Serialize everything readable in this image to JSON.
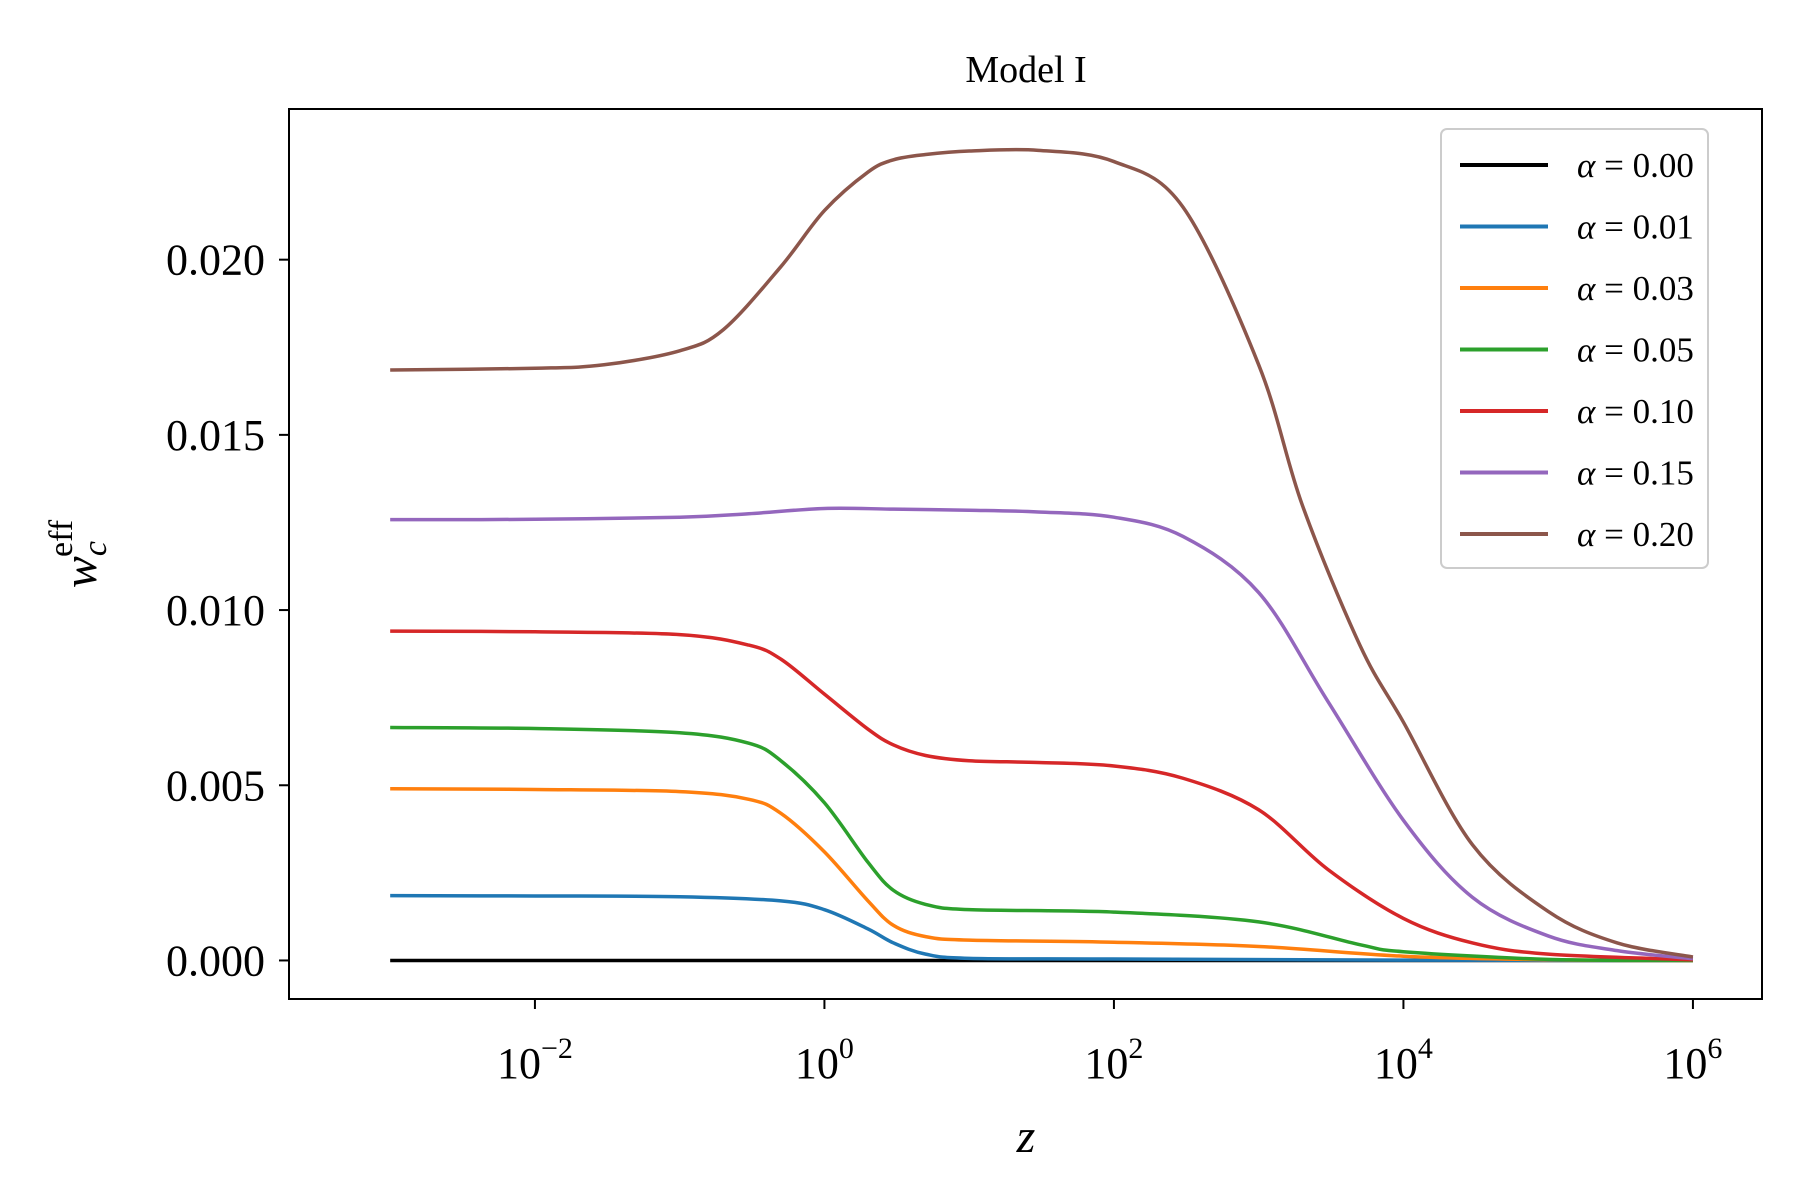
{
  "chart_data": {
    "type": "line",
    "title": "Model I",
    "xlabel": "z",
    "ylabel": "w",
    "ylabel_sub": "c",
    "ylabel_sup": "eff",
    "xscale": "log",
    "xlim": [
      0.0002,
      3000000
    ],
    "ylim": [
      -0.0011,
      0.0243
    ],
    "xticks": [
      {
        "value": 0.01,
        "base": "10",
        "exp": "−2"
      },
      {
        "value": 1,
        "base": "10",
        "exp": "0"
      },
      {
        "value": 100,
        "base": "10",
        "exp": "2"
      },
      {
        "value": 10000,
        "base": "10",
        "exp": "4"
      },
      {
        "value": 1000000,
        "base": "10",
        "exp": "6"
      }
    ],
    "yticks": [
      {
        "value": 0.0,
        "label": "0.000"
      },
      {
        "value": 0.005,
        "label": "0.005"
      },
      {
        "value": 0.01,
        "label": "0.010"
      },
      {
        "value": 0.015,
        "label": "0.015"
      },
      {
        "value": 0.02,
        "label": "0.020"
      }
    ],
    "legend_position": "top-right",
    "legend_symbol": "α",
    "series": [
      {
        "name": "α = 0.00",
        "value_label": "= 0.00",
        "color": "#000000",
        "x": [
          0.001,
          1000000
        ],
        "y": [
          0,
          0
        ]
      },
      {
        "name": "α = 0.01",
        "value_label": "= 0.01",
        "color": "#1f77b4",
        "x": [
          0.001,
          0.01,
          0.1,
          0.5,
          1,
          2,
          3,
          5,
          10,
          100,
          10000,
          1000000
        ],
        "y": [
          0.00185,
          0.00184,
          0.00182,
          0.0017,
          0.00145,
          0.0009,
          0.0005,
          0.00018,
          6e-05,
          4e-05,
          1e-05,
          0.0
        ]
      },
      {
        "name": "α = 0.03",
        "value_label": "= 0.03",
        "color": "#ff7f0e",
        "x": [
          0.001,
          0.01,
          0.1,
          0.3,
          0.5,
          1,
          2,
          3,
          5,
          10,
          100,
          1000,
          10000,
          100000,
          1000000
        ],
        "y": [
          0.0049,
          0.00488,
          0.00482,
          0.0046,
          0.0042,
          0.0031,
          0.0017,
          0.001,
          0.00068,
          0.00058,
          0.00052,
          0.0004,
          0.00012,
          2e-05,
          0.0
        ]
      },
      {
        "name": "α = 0.05",
        "value_label": "= 0.05",
        "color": "#2ca02c",
        "x": [
          0.001,
          0.01,
          0.1,
          0.3,
          0.5,
          1,
          2,
          3,
          5,
          10,
          100,
          1000,
          5000,
          10000,
          100000,
          1000000
        ],
        "y": [
          0.00665,
          0.00662,
          0.0065,
          0.0062,
          0.0057,
          0.0045,
          0.0028,
          0.002,
          0.0016,
          0.00145,
          0.00138,
          0.0011,
          0.00045,
          0.00025,
          3e-05,
          0.0
        ]
      },
      {
        "name": "α = 0.10",
        "value_label": "= 0.10",
        "color": "#d62728",
        "x": [
          0.001,
          0.01,
          0.1,
          0.3,
          0.5,
          1,
          2,
          3,
          5,
          10,
          30,
          100,
          300,
          1000,
          3000,
          10000,
          30000,
          100000,
          1000000
        ],
        "y": [
          0.0094,
          0.00938,
          0.0093,
          0.009,
          0.0086,
          0.0076,
          0.0066,
          0.00615,
          0.00585,
          0.0057,
          0.00565,
          0.00555,
          0.0052,
          0.0043,
          0.0026,
          0.0012,
          0.0005,
          0.00018,
          2e-05
        ]
      },
      {
        "name": "α = 0.15",
        "value_label": "= 0.15",
        "color": "#9467bd",
        "x": [
          0.001,
          0.01,
          0.1,
          0.3,
          1,
          3,
          10,
          30,
          100,
          300,
          1000,
          3000,
          10000,
          30000,
          100000,
          300000,
          1000000
        ],
        "y": [
          0.01258,
          0.01259,
          0.01265,
          0.01275,
          0.0129,
          0.01288,
          0.01285,
          0.0128,
          0.01265,
          0.0121,
          0.0105,
          0.0074,
          0.004,
          0.0018,
          0.0007,
          0.00028,
          5e-05
        ]
      },
      {
        "name": "α = 0.20",
        "value_label": "= 0.20",
        "color": "#8c564b",
        "x": [
          0.001,
          0.01,
          0.03,
          0.1,
          0.2,
          0.5,
          1,
          2,
          3,
          5,
          10,
          30,
          100,
          300,
          1000,
          2000,
          5000,
          10000,
          30000,
          100000,
          300000,
          1000000
        ],
        "y": [
          0.01685,
          0.0169,
          0.017,
          0.0174,
          0.018,
          0.0198,
          0.0214,
          0.0225,
          0.02285,
          0.023,
          0.0231,
          0.02312,
          0.0228,
          0.0215,
          0.017,
          0.013,
          0.009,
          0.0068,
          0.0033,
          0.0014,
          0.0005,
          0.0001
        ]
      }
    ]
  }
}
